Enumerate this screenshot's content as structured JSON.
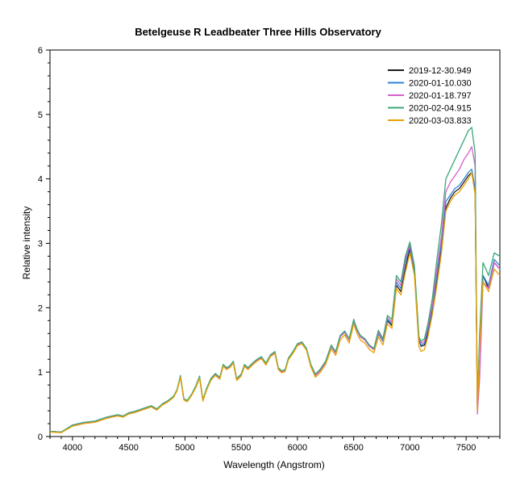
{
  "chart_data": {
    "type": "line",
    "title": "Betelgeuse   R  Leadbeater   Three Hills Observatory",
    "xlabel": "Wavelength (Angstrom)",
    "ylabel": "Relative intensity",
    "xlim": [
      3800,
      7800
    ],
    "ylim": [
      0,
      6
    ],
    "xticks": [
      4000,
      4500,
      5000,
      5500,
      6000,
      6500,
      7000,
      7500
    ],
    "yticks": [
      0,
      1,
      2,
      3,
      4,
      5,
      6
    ],
    "grid": false,
    "legend_position": "top-right",
    "x": [
      3800,
      3900,
      4000,
      4100,
      4200,
      4300,
      4400,
      4450,
      4500,
      4550,
      4600,
      4650,
      4700,
      4750,
      4800,
      4850,
      4900,
      4930,
      4960,
      4990,
      5020,
      5060,
      5100,
      5130,
      5160,
      5190,
      5230,
      5270,
      5310,
      5340,
      5370,
      5400,
      5430,
      5460,
      5500,
      5530,
      5560,
      5600,
      5640,
      5680,
      5720,
      5760,
      5800,
      5830,
      5860,
      5890,
      5920,
      5960,
      6000,
      6040,
      6080,
      6120,
      6160,
      6200,
      6250,
      6300,
      6340,
      6380,
      6420,
      6460,
      6500,
      6530,
      6560,
      6600,
      6640,
      6680,
      6720,
      6760,
      6800,
      6840,
      6880,
      6920,
      6960,
      7000,
      7040,
      7080,
      7100,
      7130,
      7160,
      7200,
      7240,
      7280,
      7320,
      7360,
      7400,
      7440,
      7480,
      7520,
      7550,
      7580,
      7600,
      7620,
      7650,
      7700,
      7750,
      7800
    ],
    "series": [
      {
        "name": "2019-12-30.949",
        "color": "#1a1a1a",
        "values": [
          0.08,
          0.07,
          0.17,
          0.21,
          0.23,
          0.29,
          0.33,
          0.31,
          0.36,
          0.38,
          0.41,
          0.44,
          0.47,
          0.42,
          0.5,
          0.55,
          0.62,
          0.72,
          0.93,
          0.58,
          0.55,
          0.65,
          0.78,
          0.92,
          0.56,
          0.72,
          0.88,
          0.96,
          0.9,
          1.1,
          1.05,
          1.08,
          1.15,
          0.88,
          0.95,
          1.1,
          1.05,
          1.12,
          1.18,
          1.22,
          1.12,
          1.25,
          1.3,
          1.05,
          1.0,
          1.02,
          1.2,
          1.3,
          1.42,
          1.45,
          1.35,
          1.1,
          0.95,
          1.02,
          1.15,
          1.4,
          1.3,
          1.55,
          1.62,
          1.5,
          1.8,
          1.65,
          1.55,
          1.5,
          1.4,
          1.35,
          1.6,
          1.48,
          1.8,
          1.72,
          2.35,
          2.25,
          2.6,
          2.92,
          2.55,
          1.5,
          1.4,
          1.42,
          1.6,
          1.95,
          2.4,
          2.9,
          3.55,
          3.7,
          3.8,
          3.85,
          3.95,
          4.05,
          4.1,
          3.8,
          0.45,
          1.5,
          2.5,
          2.3,
          2.7,
          2.6
        ]
      },
      {
        "name": "2020-01-10.030",
        "color": "#2e82d6",
        "values": [
          0.08,
          0.07,
          0.17,
          0.21,
          0.23,
          0.29,
          0.33,
          0.31,
          0.36,
          0.38,
          0.41,
          0.44,
          0.47,
          0.42,
          0.5,
          0.55,
          0.62,
          0.72,
          0.93,
          0.58,
          0.55,
          0.65,
          0.78,
          0.92,
          0.56,
          0.72,
          0.88,
          0.96,
          0.9,
          1.1,
          1.05,
          1.08,
          1.15,
          0.88,
          0.95,
          1.1,
          1.05,
          1.12,
          1.18,
          1.22,
          1.12,
          1.25,
          1.3,
          1.05,
          1.0,
          1.02,
          1.2,
          1.3,
          1.42,
          1.45,
          1.35,
          1.1,
          0.95,
          1.02,
          1.15,
          1.4,
          1.3,
          1.55,
          1.62,
          1.5,
          1.8,
          1.65,
          1.55,
          1.5,
          1.4,
          1.35,
          1.6,
          1.48,
          1.82,
          1.75,
          2.4,
          2.3,
          2.7,
          2.95,
          2.58,
          1.5,
          1.42,
          1.45,
          1.65,
          2.0,
          2.5,
          3.0,
          3.65,
          3.75,
          3.85,
          3.9,
          4.0,
          4.1,
          4.15,
          3.85,
          0.4,
          1.45,
          2.5,
          2.35,
          2.75,
          2.65
        ]
      },
      {
        "name": "2020-01-18.797",
        "color": "#d65fce",
        "values": [
          0.08,
          0.07,
          0.17,
          0.21,
          0.23,
          0.29,
          0.33,
          0.31,
          0.36,
          0.38,
          0.41,
          0.44,
          0.47,
          0.42,
          0.5,
          0.55,
          0.62,
          0.72,
          0.93,
          0.58,
          0.55,
          0.65,
          0.78,
          0.92,
          0.56,
          0.72,
          0.88,
          0.96,
          0.9,
          1.1,
          1.05,
          1.08,
          1.15,
          0.88,
          0.95,
          1.1,
          1.05,
          1.12,
          1.18,
          1.22,
          1.12,
          1.25,
          1.3,
          1.05,
          1.0,
          1.02,
          1.2,
          1.3,
          1.42,
          1.45,
          1.35,
          1.1,
          0.95,
          1.02,
          1.15,
          1.4,
          1.3,
          1.55,
          1.62,
          1.5,
          1.8,
          1.65,
          1.55,
          1.5,
          1.4,
          1.35,
          1.62,
          1.5,
          1.85,
          1.78,
          2.45,
          2.35,
          2.75,
          2.98,
          2.62,
          1.52,
          1.45,
          1.48,
          1.7,
          2.05,
          2.6,
          3.1,
          3.8,
          3.95,
          4.05,
          4.15,
          4.3,
          4.4,
          4.5,
          4.2,
          0.35,
          0.9,
          2.4,
          2.3,
          2.7,
          2.6
        ]
      },
      {
        "name": "2020-02-04.915",
        "color": "#3aa876",
        "values": [
          0.08,
          0.07,
          0.18,
          0.22,
          0.24,
          0.3,
          0.34,
          0.32,
          0.37,
          0.39,
          0.42,
          0.45,
          0.48,
          0.43,
          0.51,
          0.56,
          0.63,
          0.73,
          0.95,
          0.59,
          0.56,
          0.66,
          0.8,
          0.94,
          0.57,
          0.74,
          0.9,
          0.98,
          0.92,
          1.12,
          1.07,
          1.1,
          1.17,
          0.9,
          0.97,
          1.12,
          1.07,
          1.14,
          1.2,
          1.24,
          1.14,
          1.27,
          1.32,
          1.07,
          1.02,
          1.04,
          1.22,
          1.32,
          1.44,
          1.47,
          1.37,
          1.12,
          0.97,
          1.04,
          1.17,
          1.42,
          1.32,
          1.57,
          1.64,
          1.52,
          1.82,
          1.67,
          1.57,
          1.52,
          1.42,
          1.37,
          1.65,
          1.52,
          1.88,
          1.82,
          2.5,
          2.4,
          2.8,
          3.02,
          2.65,
          1.55,
          1.48,
          1.52,
          1.75,
          2.15,
          2.75,
          3.3,
          4.0,
          4.15,
          4.3,
          4.45,
          4.6,
          4.75,
          4.8,
          4.4,
          0.5,
          1.6,
          2.7,
          2.5,
          2.85,
          2.8
        ]
      },
      {
        "name": "2020-03-03.833",
        "color": "#e8a000",
        "values": [
          0.07,
          0.06,
          0.16,
          0.2,
          0.22,
          0.28,
          0.32,
          0.3,
          0.35,
          0.37,
          0.4,
          0.43,
          0.46,
          0.41,
          0.49,
          0.54,
          0.61,
          0.71,
          0.92,
          0.57,
          0.54,
          0.64,
          0.77,
          0.91,
          0.55,
          0.71,
          0.87,
          0.95,
          0.89,
          1.09,
          1.04,
          1.07,
          1.14,
          0.87,
          0.94,
          1.09,
          1.04,
          1.11,
          1.17,
          1.21,
          1.11,
          1.24,
          1.29,
          1.04,
          0.99,
          1.01,
          1.19,
          1.29,
          1.41,
          1.44,
          1.34,
          1.08,
          0.92,
          0.99,
          1.12,
          1.36,
          1.26,
          1.5,
          1.58,
          1.45,
          1.75,
          1.6,
          1.5,
          1.45,
          1.35,
          1.3,
          1.55,
          1.42,
          1.75,
          1.68,
          2.3,
          2.2,
          2.55,
          2.85,
          2.5,
          1.4,
          1.32,
          1.35,
          1.55,
          1.9,
          2.35,
          2.85,
          3.5,
          3.65,
          3.75,
          3.8,
          3.9,
          4.0,
          4.1,
          3.75,
          0.4,
          1.4,
          2.4,
          2.25,
          2.6,
          2.5
        ]
      }
    ]
  }
}
